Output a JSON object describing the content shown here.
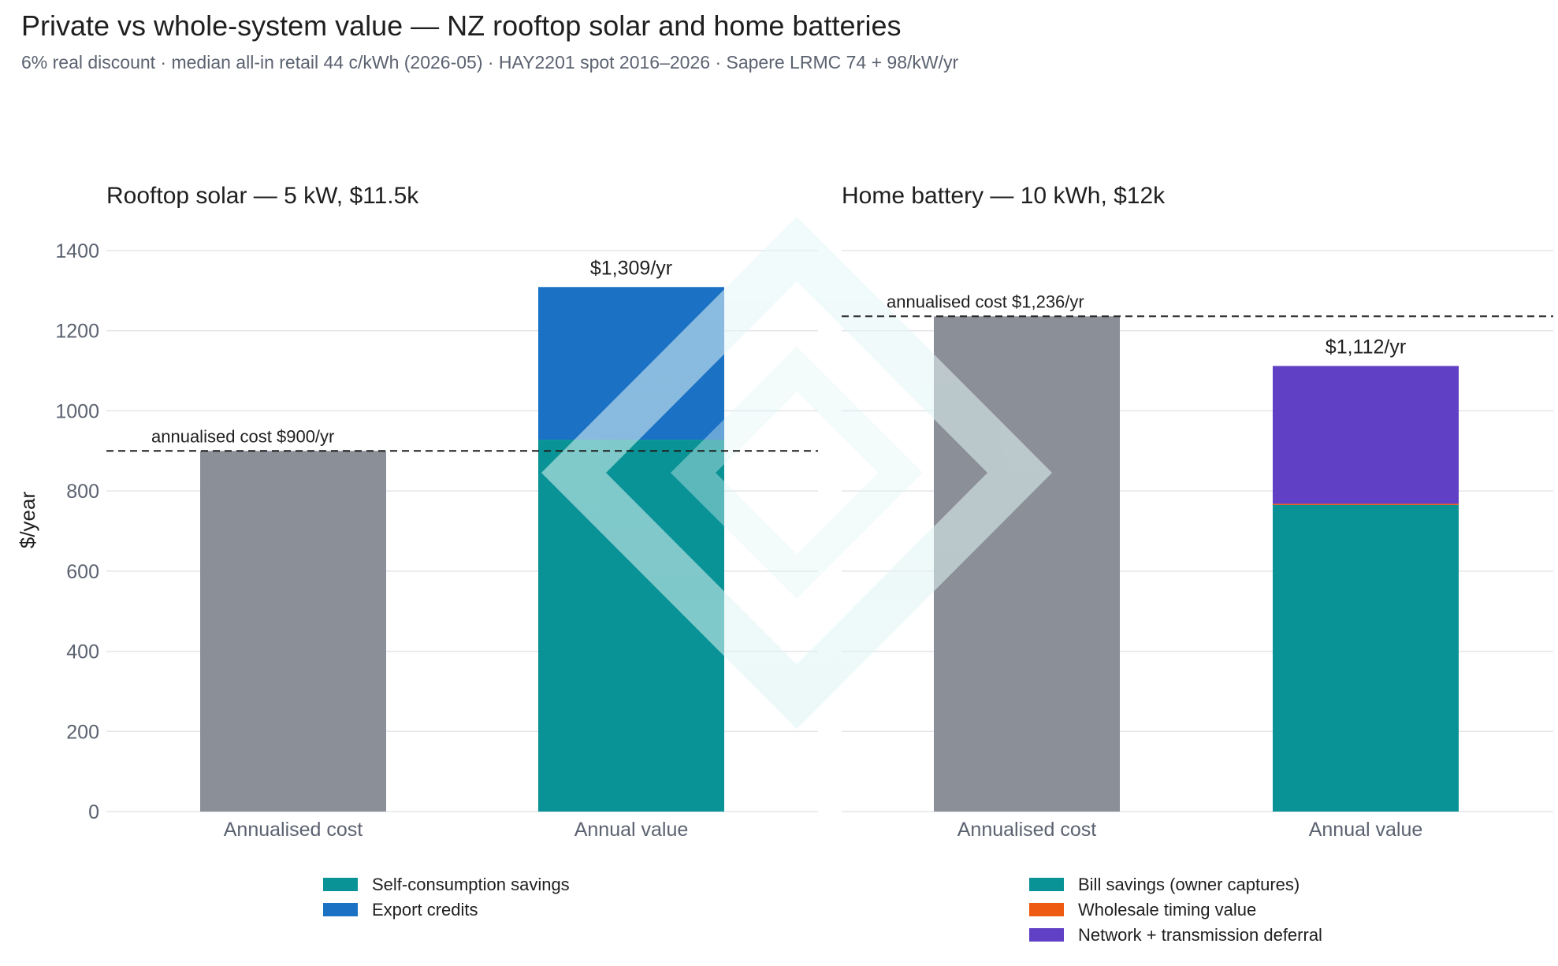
{
  "title": "Private vs whole-system value — NZ rooftop solar and home batteries",
  "subtitle": "6% real discount · median all-in retail 44 c/kWh (2026-05) · HAY2201 spot 2016–2026 · Sapere LRMC 74 + 98/kW/yr",
  "chart_data": [
    {
      "type": "bar",
      "stacked": true,
      "title": "Rooftop solar — 5 kW, $11.5k",
      "ylabel": "$/year",
      "ylim": [
        0,
        1400
      ],
      "yticks": [
        0,
        200,
        400,
        600,
        800,
        1000,
        1200,
        1400
      ],
      "grid": true,
      "categories": [
        "Annualised cost",
        "Annual value"
      ],
      "series": [
        {
          "name": "Annualised cost",
          "color": "#8b8f98",
          "values": [
            900,
            0
          ]
        },
        {
          "name": "Self-consumption savings",
          "color": "#0a9396",
          "values": [
            0,
            928
          ]
        },
        {
          "name": "Export credits",
          "color": "#1b72c4",
          "values": [
            0,
            381
          ]
        }
      ],
      "totals": [
        "",
        "$1,309/yr"
      ],
      "reference_line": {
        "value": 900,
        "label": "annualised cost $900/yr"
      },
      "legend": [
        "Self-consumption savings",
        "Export credits"
      ],
      "legend_placement": "bottom"
    },
    {
      "type": "bar",
      "stacked": true,
      "title": "Home battery — 10 kWh, $12k",
      "ylabel": "",
      "ylim": [
        0,
        1400
      ],
      "grid": true,
      "categories": [
        "Annualised cost",
        "Annual value"
      ],
      "series": [
        {
          "name": "Annualised cost",
          "color": "#8b8f98",
          "values": [
            1236,
            0
          ]
        },
        {
          "name": "Bill savings (owner captures)",
          "color": "#0a9396",
          "values": [
            0,
            765
          ]
        },
        {
          "name": "Wholesale timing value",
          "color": "#ee5a12",
          "values": [
            0,
            3
          ]
        },
        {
          "name": "Network + transmission deferral",
          "color": "#6040c4",
          "values": [
            0,
            344
          ]
        }
      ],
      "totals": [
        "",
        "$1,112/yr"
      ],
      "reference_line": {
        "value": 1236,
        "label": "annualised cost $1,236/yr"
      },
      "legend": [
        "Bill savings (owner captures)",
        "Wholesale timing value",
        "Network + transmission deferral"
      ],
      "legend_placement": "bottom"
    }
  ]
}
